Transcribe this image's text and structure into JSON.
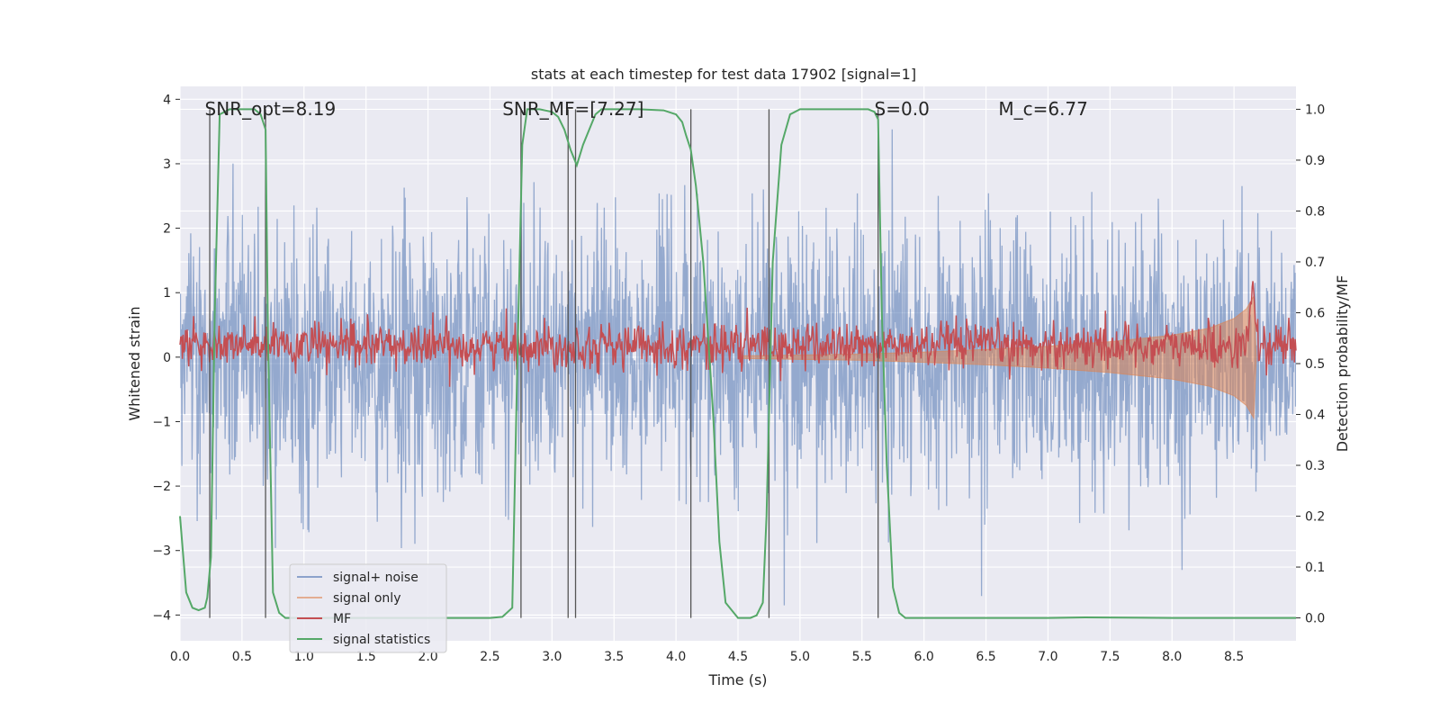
{
  "chart_data": {
    "type": "line",
    "title": "stats at each timestep for test data 17902 [signal=1]",
    "xlabel": "Time (s)",
    "ylabel": "Whitened strain",
    "ylabel_right": "Detection probability/MF",
    "xlim": [
      0.0,
      9.0
    ],
    "ylim": [
      -4.4,
      4.2
    ],
    "ylim_right": [
      -0.045,
      1.045
    ],
    "x_ticks": [
      0.0,
      0.5,
      1.0,
      1.5,
      2.0,
      2.5,
      3.0,
      3.5,
      4.0,
      4.5,
      5.0,
      5.5,
      6.0,
      6.5,
      7.0,
      7.5,
      8.0,
      8.5
    ],
    "x_tick_labels": [
      "0.0",
      "0.5",
      "1.0",
      "1.5",
      "2.0",
      "2.5",
      "3.0",
      "3.5",
      "4.0",
      "4.5",
      "5.0",
      "5.5",
      "6.0",
      "6.5",
      "7.0",
      "7.5",
      "8.0",
      "8.5"
    ],
    "y_ticks": [
      -4,
      -3,
      -2,
      -1,
      0,
      1,
      2,
      3,
      4
    ],
    "y_tick_labels": [
      "−4",
      "−3",
      "−2",
      "−1",
      "0",
      "1",
      "2",
      "3",
      "4"
    ],
    "y_ticks_right": [
      0.0,
      0.1,
      0.2,
      0.3,
      0.4,
      0.5,
      0.6,
      0.7,
      0.8,
      0.9,
      1.0
    ],
    "y_tick_labels_right": [
      "0.0",
      "0.1",
      "0.2",
      "0.3",
      "0.4",
      "0.5",
      "0.6",
      "0.7",
      "0.8",
      "0.9",
      "1.0"
    ],
    "grid": true,
    "annotations": [
      {
        "text": "SNR_opt=8.19",
        "x": 0.2,
        "y": 3.75
      },
      {
        "text": "SNR_MF=[7.27]",
        "x": 2.6,
        "y": 3.75
      },
      {
        "text": "S=0.0",
        "x": 5.6,
        "y": 3.75
      },
      {
        "text": "M_c=6.77",
        "x": 6.6,
        "y": 3.75
      }
    ],
    "vertical_lines": [
      0.24,
      0.69,
      2.75,
      3.13,
      3.19,
      4.12,
      4.75,
      5.63
    ],
    "series": [
      {
        "name": "signal+ noise",
        "color": "#4c72b0",
        "description": "whitened strain, dense noise approx std 1 spanning about -4 to 3.9"
      },
      {
        "name": "signal only",
        "color": "#dd8452",
        "envelope_x": [
          4.5,
          5.5,
          6.0,
          6.5,
          7.0,
          7.5,
          8.0,
          8.3,
          8.5,
          8.6,
          8.66,
          8.68
        ],
        "envelope_amp": [
          0.02,
          0.05,
          0.08,
          0.12,
          0.17,
          0.24,
          0.34,
          0.45,
          0.6,
          0.75,
          0.95,
          0.0
        ]
      },
      {
        "name": "MF",
        "color": "#c44e52",
        "axis": "right",
        "baseline": 0.535,
        "spread": 0.022,
        "peak": {
          "x": 8.65,
          "y": 0.66
        }
      },
      {
        "name": "signal statistics",
        "color": "#55a868",
        "axis": "right",
        "x": [
          0.0,
          0.05,
          0.1,
          0.15,
          0.2,
          0.22,
          0.25,
          0.28,
          0.32,
          0.4,
          0.5,
          0.6,
          0.65,
          0.69,
          0.71,
          0.75,
          0.8,
          0.85,
          1.0,
          1.5,
          2.0,
          2.5,
          2.6,
          2.68,
          2.72,
          2.76,
          2.8,
          2.9,
          3.0,
          3.05,
          3.1,
          3.15,
          3.2,
          3.25,
          3.3,
          3.35,
          3.4,
          3.5,
          3.7,
          3.9,
          4.0,
          4.05,
          4.08,
          4.12,
          4.16,
          4.22,
          4.3,
          4.35,
          4.4,
          4.5,
          4.6,
          4.65,
          4.7,
          4.73,
          4.78,
          4.85,
          4.92,
          5.0,
          5.2,
          5.4,
          5.5,
          5.55,
          5.6,
          5.63,
          5.66,
          5.7,
          5.75,
          5.8,
          5.85,
          5.9,
          6.0,
          7.0,
          7.3,
          8.0,
          9.0
        ],
        "y": [
          0.2,
          0.05,
          0.02,
          0.015,
          0.02,
          0.04,
          0.12,
          0.6,
          0.99,
          1.0,
          1.0,
          1.0,
          0.99,
          0.96,
          0.55,
          0.05,
          0.01,
          0.0,
          0.0,
          0.0,
          0.0,
          0.0,
          0.002,
          0.02,
          0.5,
          0.93,
          1.0,
          1.0,
          0.995,
          0.985,
          0.96,
          0.92,
          0.89,
          0.93,
          0.96,
          0.99,
          1.0,
          1.0,
          1.0,
          0.998,
          0.99,
          0.975,
          0.95,
          0.92,
          0.85,
          0.7,
          0.4,
          0.15,
          0.03,
          0.0,
          0.0,
          0.005,
          0.03,
          0.2,
          0.7,
          0.93,
          0.99,
          1.0,
          1.0,
          1.0,
          1.0,
          1.0,
          0.995,
          0.98,
          0.6,
          0.3,
          0.06,
          0.01,
          0.0,
          0.0,
          0.0,
          0.0,
          0.001,
          0.0,
          0.0
        ]
      }
    ],
    "legend": {
      "position": "lower-left",
      "entries": [
        {
          "label": "signal+ noise",
          "color": "#4c72b0"
        },
        {
          "label": "signal only",
          "color": "#dd8452"
        },
        {
          "label": "MF",
          "color": "#c44e52"
        },
        {
          "label": "signal statistics",
          "color": "#55a868"
        }
      ]
    },
    "style": {
      "background": "#eaeaf2",
      "grid_color": "#ffffff",
      "vline_color": "#555555"
    }
  }
}
